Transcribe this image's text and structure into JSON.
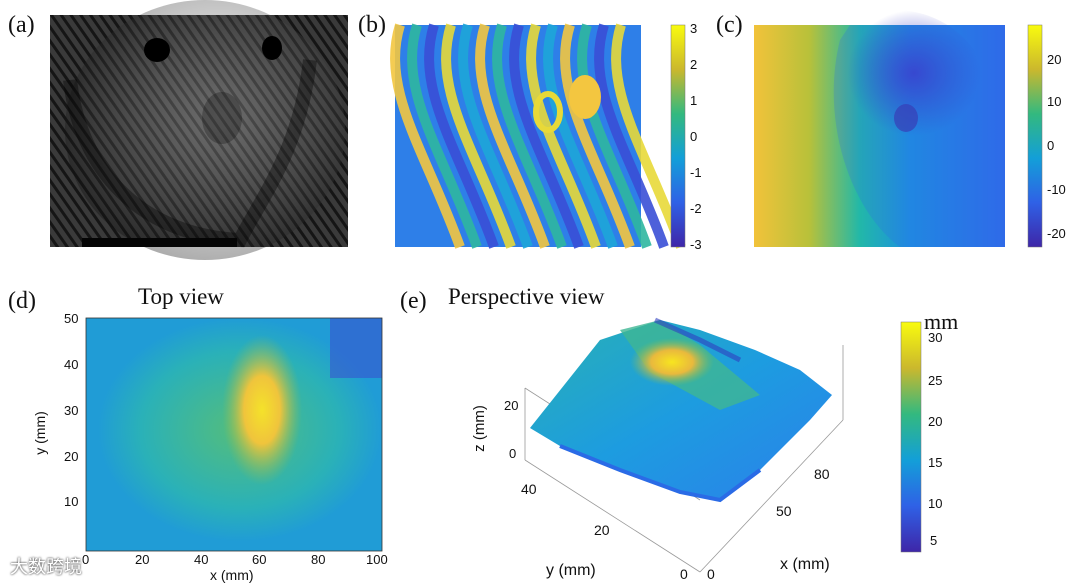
{
  "labels": {
    "a": "(a)",
    "b": "(b)",
    "c": "(c)",
    "d": "(d)",
    "e": "(e)"
  },
  "titles": {
    "d": "Top view",
    "e": "Perspective view"
  },
  "colorbar_b": {
    "ticks": [
      "3",
      "2",
      "1",
      "0",
      "-1",
      "-2",
      "-3"
    ],
    "range": [
      -3.14,
      3.14
    ]
  },
  "colorbar_c": {
    "ticks": [
      "20",
      "10",
      "0",
      "-10",
      "-20"
    ],
    "range": [
      -24,
      28
    ]
  },
  "colorbar_e": {
    "unit": "mm",
    "ticks": [
      "30",
      "25",
      "20",
      "15",
      "10",
      "5"
    ],
    "range": [
      3,
      31
    ]
  },
  "axes_d": {
    "xlabel": "x (mm)",
    "ylabel": "y (mm)",
    "xticks": [
      "0",
      "20",
      "40",
      "60",
      "80",
      "100"
    ],
    "yticks": [
      "50",
      "40",
      "30",
      "20",
      "10"
    ]
  },
  "axes_e": {
    "zlabel": "z (mm)",
    "ylabel": "y (mm)",
    "xlabel": "x (mm)",
    "zticks": [
      "20",
      "0"
    ],
    "yticks": [
      "40",
      "20",
      "0"
    ],
    "xticks": [
      "80",
      "50",
      "0"
    ]
  },
  "watermark": "大数跨境",
  "colors": {
    "viridis_low": "#3e26a8",
    "viridis_mid": "#1fb2c6",
    "viridis_high": "#f9fb0e"
  }
}
